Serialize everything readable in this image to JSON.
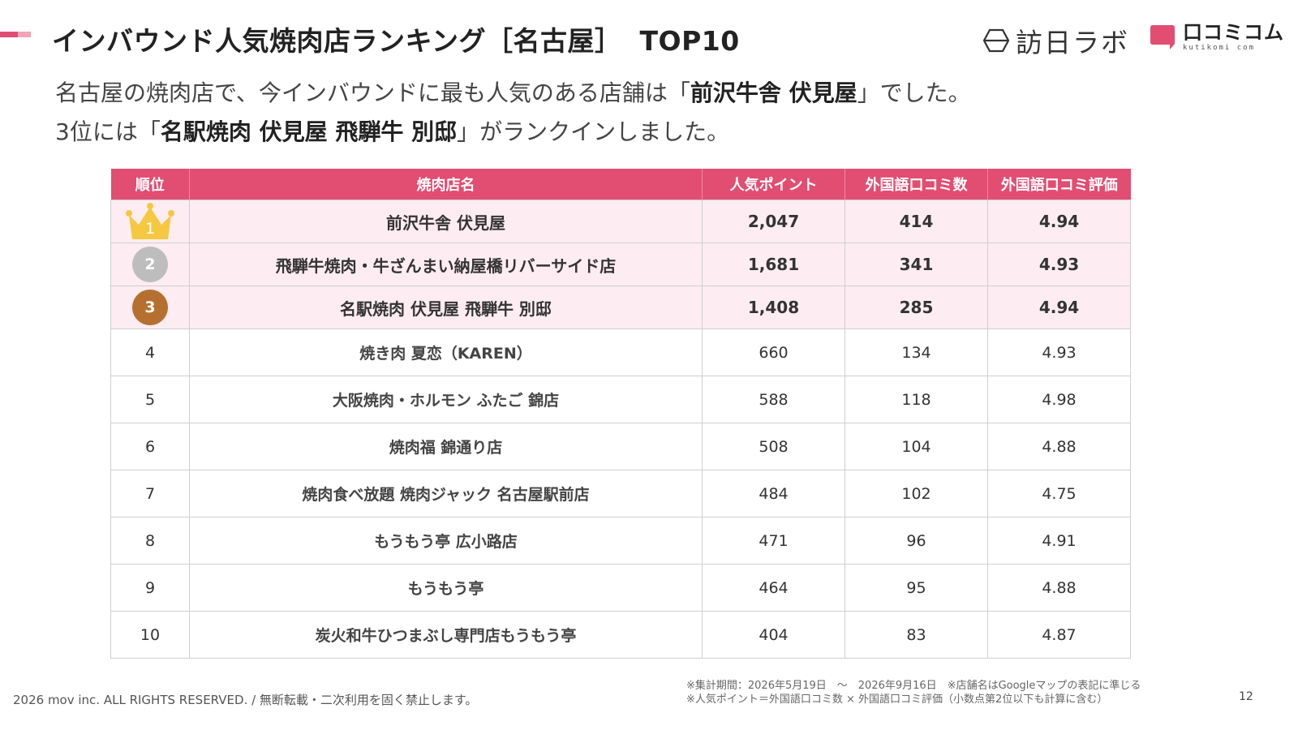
{
  "title": {
    "main": "インバウンド人気焼肉店ランキング［名古屋］",
    "top": "TOP10"
  },
  "logos": {
    "houjin_labo": "訪日ラボ",
    "kutikomi_name": "口コミコム",
    "kutikomi_sub": "kutikomi com"
  },
  "lead": {
    "line1_pre": "名古屋の焼肉店で、今インバウンドに最も人気のある店舗は「",
    "line1_bold": "前沢牛舎 伏見屋",
    "line1_post": "」でした。",
    "line2_pre": "3位には「",
    "line2_bold": "名駅焼肉 伏見屋 飛騨牛 別邸",
    "line2_post": "」がランクインしました。"
  },
  "table": {
    "headers": [
      "順位",
      "焼肉店名",
      "人気ポイント",
      "外国語口コミ数",
      "外国語口コミ評価"
    ],
    "rows": [
      {
        "rank": "1",
        "shop": "前沢牛舎 伏見屋",
        "points": "2,047",
        "reviews": "414",
        "rating": "4.94"
      },
      {
        "rank": "2",
        "shop": "飛騨牛焼肉・牛ざんまい納屋橋リバーサイド店",
        "points": "1,681",
        "reviews": "341",
        "rating": "4.93"
      },
      {
        "rank": "3",
        "shop": "名駅焼肉 伏見屋 飛騨牛 別邸",
        "points": "1,408",
        "reviews": "285",
        "rating": "4.94"
      },
      {
        "rank": "4",
        "shop": "焼き肉 夏恋（KAREN）",
        "points": "660",
        "reviews": "134",
        "rating": "4.93"
      },
      {
        "rank": "5",
        "shop": "大阪焼肉・ホルモン ふたご 錦店",
        "points": "588",
        "reviews": "118",
        "rating": "4.98"
      },
      {
        "rank": "6",
        "shop": "焼肉福 錦通り店",
        "points": "508",
        "reviews": "104",
        "rating": "4.88"
      },
      {
        "rank": "7",
        "shop": "焼肉食べ放題 焼肉ジャック 名古屋駅前店",
        "points": "484",
        "reviews": "102",
        "rating": "4.75"
      },
      {
        "rank": "8",
        "shop": "もうもう亭 広小路店",
        "points": "471",
        "reviews": "96",
        "rating": "4.91"
      },
      {
        "rank": "9",
        "shop": "もうもう亭",
        "points": "464",
        "reviews": "95",
        "rating": "4.88"
      },
      {
        "rank": "10",
        "shop": "炭火和牛ひつまぶし専門店もうもう亭",
        "points": "404",
        "reviews": "83",
        "rating": "4.87"
      }
    ]
  },
  "notes": {
    "line1": "※集計期間：2026年5月19日　〜　2026年9月16日　※店舗名はGoogleマップの表記に準じる",
    "line2": "※人気ポイント＝外国語口コミ数 × 外国語口コミ評価（小数点第2位以下も計算に含む）"
  },
  "footer": "2026 mov inc. ALL RIGHTS RESERVED. / 無断転載・二次利用を固く禁止します。",
  "page_number": "12",
  "colors": {
    "accent": "#e24d72",
    "accent_light": "#f2a4b6",
    "highlight_row": "#fdecf1",
    "gold": "#f5c842",
    "silver": "#bdbdbd",
    "bronze": "#b5702f"
  }
}
